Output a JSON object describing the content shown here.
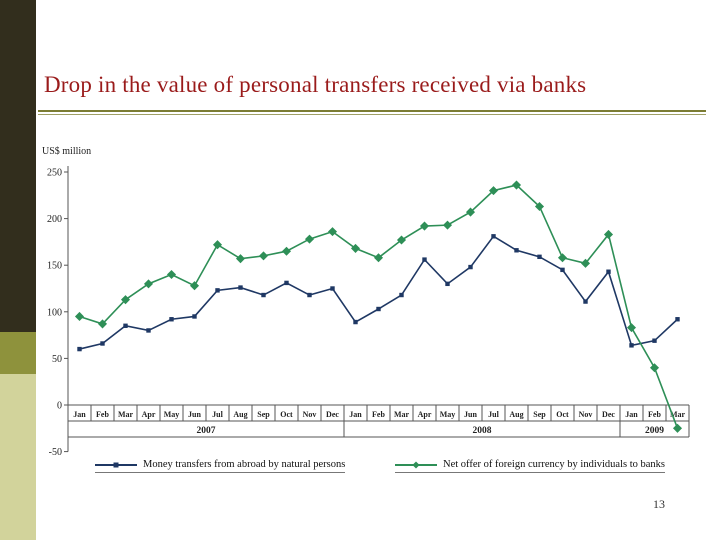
{
  "slide": {
    "title": "Drop in the value of personal transfers received via banks",
    "title_color": "#9a1b1b",
    "page_number": "13"
  },
  "chart_data": {
    "type": "line",
    "title": "",
    "y_axis_label": "US$ million",
    "ylim": [
      -50,
      250
    ],
    "y_ticks": [
      250,
      200,
      150,
      100,
      50,
      0,
      -50
    ],
    "grid": "off",
    "legend_position": "bottom",
    "categories": [
      "Jan",
      "Feb",
      "Mar",
      "Apr",
      "May",
      "Jun",
      "Jul",
      "Aug",
      "Sep",
      "Oct",
      "Nov",
      "Dec",
      "Jan",
      "Feb",
      "Mar",
      "Apr",
      "May",
      "Jun",
      "Jul",
      "Aug",
      "Sep",
      "Oct",
      "Nov",
      "Dec",
      "Jan",
      "Feb",
      "Mar"
    ],
    "year_groups": [
      {
        "label": "2007",
        "span": 12
      },
      {
        "label": "2008",
        "span": 12
      },
      {
        "label": "2009",
        "span": 3
      }
    ],
    "series": [
      {
        "name": "Money transfers from abroad by natural persons",
        "color": "#1f3864",
        "marker": "square",
        "values": [
          60,
          66,
          85,
          80,
          92,
          95,
          123,
          126,
          118,
          131,
          118,
          125,
          89,
          103,
          118,
          156,
          130,
          148,
          181,
          166,
          159,
          145,
          111,
          143,
          64,
          69,
          92
        ]
      },
      {
        "name": "Net offer of foreign currency by individuals to banks",
        "color": "#2e8f57",
        "marker": "diamond",
        "values": [
          95,
          87,
          113,
          130,
          140,
          128,
          172,
          157,
          160,
          165,
          178,
          186,
          168,
          158,
          177,
          192,
          193,
          207,
          230,
          236,
          213,
          158,
          152,
          183,
          83,
          40,
          -25
        ]
      }
    ]
  }
}
